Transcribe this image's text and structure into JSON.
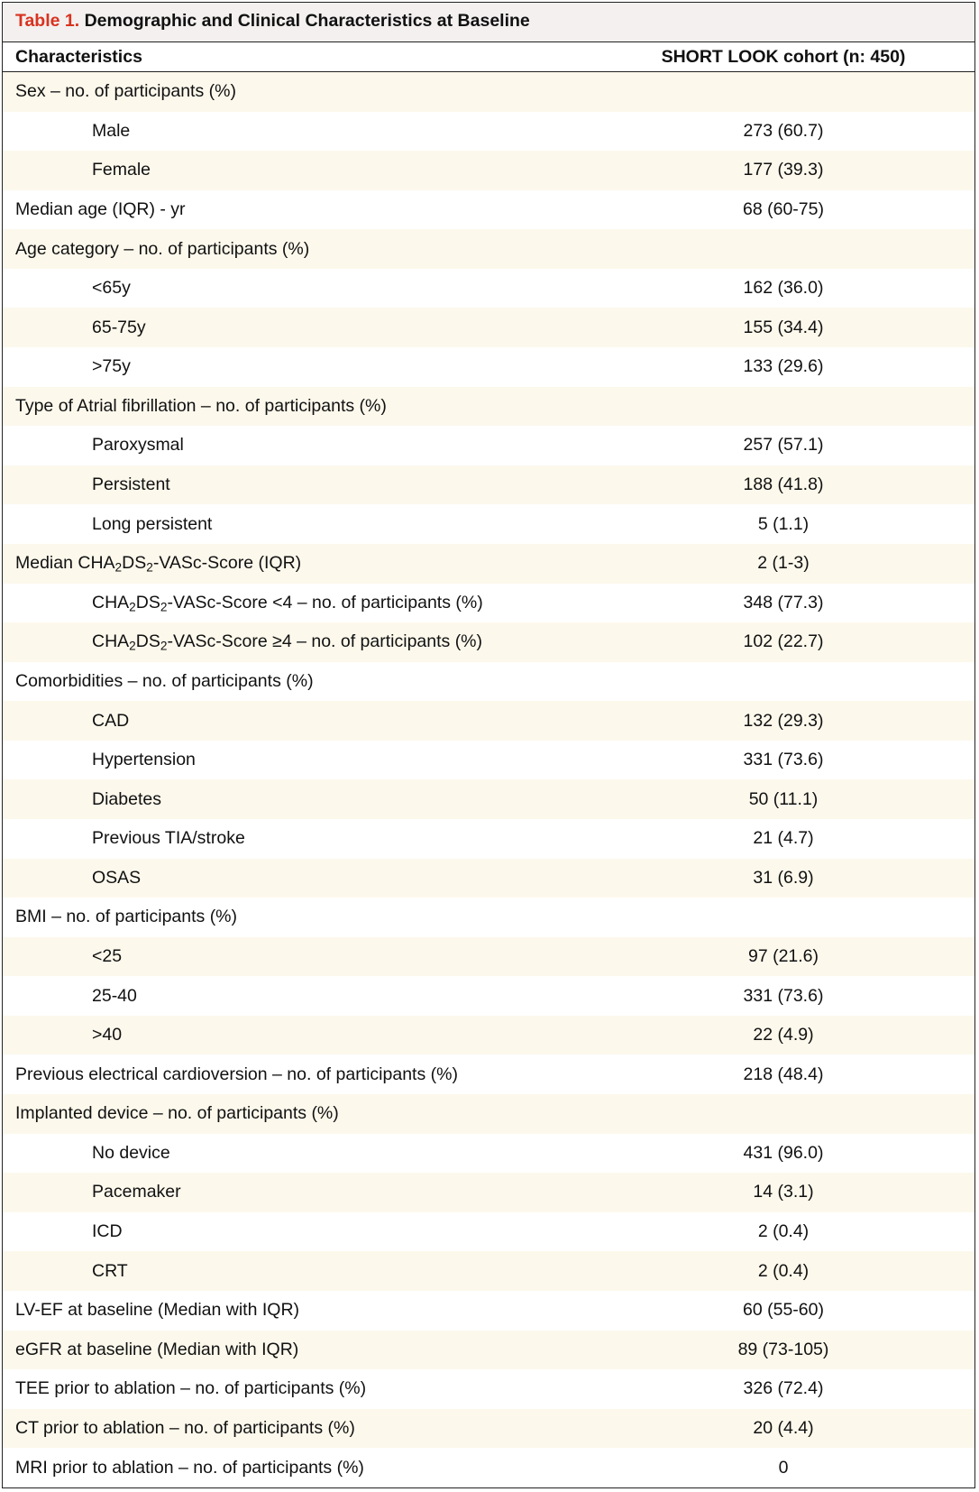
{
  "caption": {
    "label": "Table 1.",
    "title": "Demographic and Clinical Characteristics at Baseline"
  },
  "header": {
    "col1": "Characteristics",
    "col2": "SHORT LOOK cohort (n: 450)"
  },
  "rows": [
    {
      "label": "Sex – no. of participants (%)",
      "value": "",
      "indent": false,
      "shade": true
    },
    {
      "label": "Male",
      "value": "273 (60.7)",
      "indent": true,
      "shade": false
    },
    {
      "label": "Female",
      "value": "177 (39.3)",
      "indent": true,
      "shade": true
    },
    {
      "label": "Median age (IQR) - yr",
      "value": "68 (60-75)",
      "indent": false,
      "shade": false
    },
    {
      "label": "Age category – no. of participants (%)",
      "value": "",
      "indent": false,
      "shade": true
    },
    {
      "label": "<65y",
      "value": "162 (36.0)",
      "indent": true,
      "shade": false
    },
    {
      "label": "65-75y",
      "value": "155 (34.4)",
      "indent": true,
      "shade": true
    },
    {
      "label": ">75y",
      "value": "133 (29.6)",
      "indent": true,
      "shade": false
    },
    {
      "label": "Type of Atrial fibrillation – no. of participants (%)",
      "value": "",
      "indent": false,
      "shade": true
    },
    {
      "label": "Paroxysmal",
      "value": "257 (57.1)",
      "indent": true,
      "shade": false
    },
    {
      "label": "Persistent",
      "value": "188 (41.8)",
      "indent": true,
      "shade": true
    },
    {
      "label": "Long persistent",
      "value": "5 (1.1)",
      "indent": true,
      "shade": false
    },
    {
      "label": "Median CHA₂DS₂-VASc-Score (IQR)",
      "value": "2 (1-3)",
      "indent": false,
      "shade": true
    },
    {
      "label": "CHA₂DS₂-VASc-Score <4 – no. of participants (%)",
      "value": "348 (77.3)",
      "indent": true,
      "shade": false
    },
    {
      "label": "CHA₂DS₂-VASc-Score ≥4 – no. of participants (%)",
      "value": "102 (22.7)",
      "indent": true,
      "shade": true
    },
    {
      "label": "Comorbidities – no. of participants (%)",
      "value": "",
      "indent": false,
      "shade": false
    },
    {
      "label": "CAD",
      "value": "132 (29.3)",
      "indent": true,
      "shade": true
    },
    {
      "label": "Hypertension",
      "value": "331 (73.6)",
      "indent": true,
      "shade": false
    },
    {
      "label": "Diabetes",
      "value": "50 (11.1)",
      "indent": true,
      "shade": true
    },
    {
      "label": "Previous TIA/stroke",
      "value": "21 (4.7)",
      "indent": true,
      "shade": false
    },
    {
      "label": "OSAS",
      "value": "31 (6.9)",
      "indent": true,
      "shade": true
    },
    {
      "label": "BMI – no. of participants (%)",
      "value": "",
      "indent": false,
      "shade": false
    },
    {
      "label": "<25",
      "value": "97 (21.6)",
      "indent": true,
      "shade": true
    },
    {
      "label": "25-40",
      "value": "331 (73.6)",
      "indent": true,
      "shade": false
    },
    {
      "label": ">40",
      "value": "22 (4.9)",
      "indent": true,
      "shade": true
    },
    {
      "label": "Previous electrical cardioversion – no. of participants (%)",
      "value": "218 (48.4)",
      "indent": false,
      "shade": false
    },
    {
      "label": "Implanted device – no. of participants (%)",
      "value": "",
      "indent": false,
      "shade": true
    },
    {
      "label": "No device",
      "value": "431 (96.0)",
      "indent": true,
      "shade": false
    },
    {
      "label": "Pacemaker",
      "value": "14 (3.1)",
      "indent": true,
      "shade": true
    },
    {
      "label": "ICD",
      "value": "2 (0.4)",
      "indent": true,
      "shade": false
    },
    {
      "label": "CRT",
      "value": "2 (0.4)",
      "indent": true,
      "shade": true
    },
    {
      "label": "LV-EF at baseline (Median with IQR)",
      "value": "60 (55-60)",
      "indent": false,
      "shade": false
    },
    {
      "label": "eGFR at baseline (Median with IQR)",
      "value": "89 (73-105)",
      "indent": false,
      "shade": true
    },
    {
      "label": "TEE prior to ablation – no. of participants (%)",
      "value": "326 (72.4)",
      "indent": false,
      "shade": false
    },
    {
      "label": "CT prior to ablation – no. of participants (%)",
      "value": "20 (4.4)",
      "indent": false,
      "shade": true
    },
    {
      "label": "MRI prior to ablation – no. of participants (%)",
      "value": "0",
      "indent": false,
      "shade": false
    }
  ]
}
